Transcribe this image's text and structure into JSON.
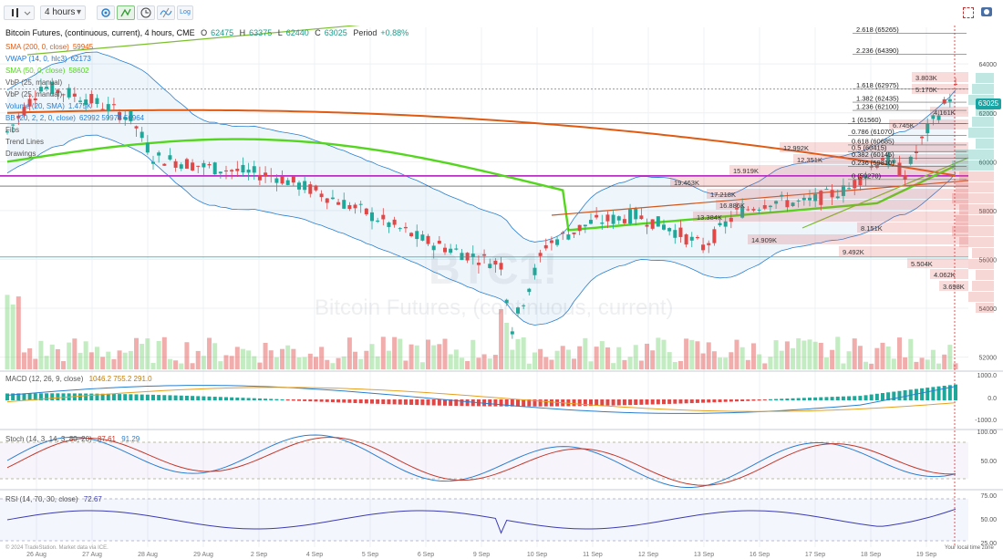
{
  "toolbar": {
    "interval": "4 hours",
    "log_label": "Log",
    "icons": [
      "bars-icon",
      "gear-icon",
      "line-tool-icon",
      "clock-icon",
      "magic-icon",
      "camera-icon",
      "fullscreen-icon"
    ]
  },
  "header": {
    "symbol": "Bitcoin Futures, (continuous, current), 4 hours, CME",
    "open_label": "O",
    "open": "62475",
    "high_label": "H",
    "high": "63375",
    "low_label": "L",
    "low": "62440",
    "close_label": "C",
    "close": "63025",
    "period_label": "Period",
    "period": "+0.88%"
  },
  "indicators": [
    {
      "name": "SMA (200, 0, close)",
      "value": "59945",
      "color": "#e05a12"
    },
    {
      "name": "VWAP (14, 0, hlc3)",
      "value": "62173",
      "color": "#1f78d1"
    },
    {
      "name": "SMA (50, 0, close)",
      "value": "58602",
      "color": "#54d61e"
    },
    {
      "name": "VbP (25, manual)",
      "value": "",
      "color": "#555"
    },
    {
      "name": "VbP (25, manual)",
      "value": "",
      "color": "#555"
    },
    {
      "name": "Volume (20, SMA)",
      "value": "1.475K",
      "color": "#2a7fd0"
    },
    {
      "name": "BB (20, 2, 2, 0, close)",
      "value": "62992 59978 56964",
      "color": "#2a7fd0"
    },
    {
      "name": "Fibs",
      "value": "",
      "color": "#555"
    },
    {
      "name": "Trend Lines",
      "value": "",
      "color": "#555"
    },
    {
      "name": "Drawings",
      "value": "",
      "color": "#555"
    }
  ],
  "watermark": {
    "ticker": "BTC1!",
    "name": "Bitcoin Futures, (continuous, current)"
  },
  "price_axis": [
    "64000",
    "62000",
    "60000",
    "58000",
    "56000",
    "54000",
    "52000"
  ],
  "last_price_badge": "63025",
  "fib_levels": [
    {
      "ratio": "2.618",
      "price": "(65265)"
    },
    {
      "ratio": "2.236",
      "price": "(64390)"
    },
    {
      "ratio": "1.618",
      "price": "(62975)"
    },
    {
      "ratio": "1.382",
      "price": "(62435)"
    },
    {
      "ratio": "1.236",
      "price": "(62100)"
    },
    {
      "ratio": "1",
      "price": "(61560)"
    },
    {
      "ratio": "0.786",
      "price": "(61070)"
    },
    {
      "ratio": "0.618",
      "price": "(60685)"
    },
    {
      "ratio": "0.5",
      "price": "(60415)"
    },
    {
      "ratio": "0.382",
      "price": "(60145)"
    },
    {
      "ratio": "0.236",
      "price": "(59810)"
    },
    {
      "ratio": "0",
      "price": "(59270)"
    }
  ],
  "vbp_labels": [
    "3.803K",
    "5.170K",
    "4.161K",
    "6.745K",
    "12.992K",
    "12.351K",
    "15.919K",
    "19.463K",
    "17.218K",
    "16.886K",
    "13.384K",
    "14.909K",
    "8.151K",
    "9.492K",
    "5.504K",
    "4.062K",
    "3.698K"
  ],
  "macd": {
    "label": "MACD (12, 26, 9, close)",
    "values": "1046.2  755.2  291.0",
    "axis": [
      "1000.0",
      "0.0",
      "-1000.0"
    ]
  },
  "stoch": {
    "label": "Stoch (14, 3, 14, 3, 80, 20)",
    "k": "87.61",
    "d": "91.29",
    "axis": [
      "100.00",
      "50.00"
    ]
  },
  "rsi": {
    "label": "RSI (14, 70, 30, close)",
    "value": "72.67",
    "axis": [
      "75.00",
      "50.00",
      "25.00"
    ]
  },
  "footer": {
    "copyright": "© 2024 TradeStation. Market data via ICE.",
    "local_time": "Your local time zone",
    "dates": [
      "26 Aug",
      "27 Aug",
      "28 Aug",
      "29 Aug",
      "2 Sep",
      "4 Sep",
      "5 Sep",
      "6 Sep",
      "9 Sep",
      "10 Sep",
      "11 Sep",
      "12 Sep",
      "13 Sep",
      "16 Sep",
      "17 Sep",
      "18 Sep",
      "19 Sep"
    ]
  }
}
